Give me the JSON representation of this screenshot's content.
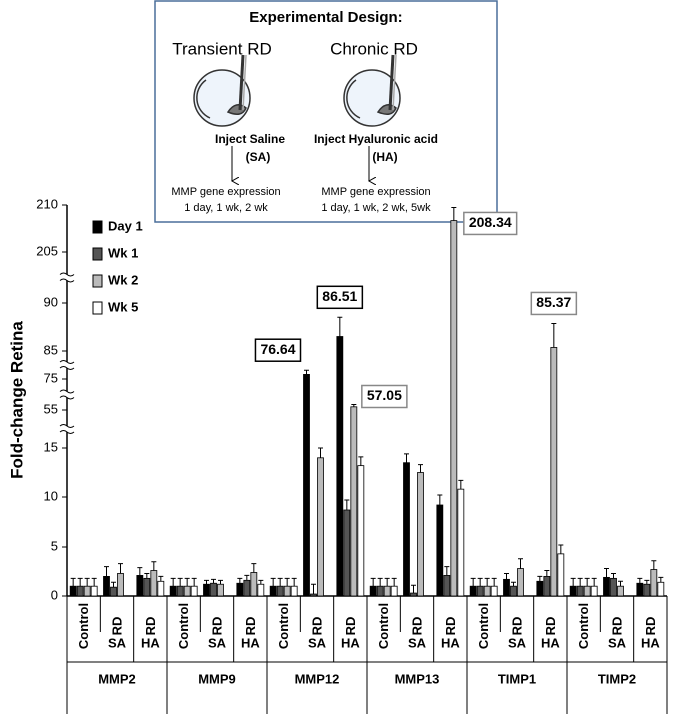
{
  "chart_data": {
    "type": "bar",
    "ylabel": "Fold-change Retina",
    "ylim": [
      0,
      210
    ],
    "yticks": [
      0,
      5,
      10,
      15,
      55,
      75,
      85,
      90,
      205,
      210
    ],
    "axis_breaks": [
      [
        15,
        55
      ],
      [
        55,
        75
      ],
      [
        75,
        85
      ],
      [
        90,
        205
      ]
    ],
    "genes": [
      "MMP2",
      "MMP9",
      "MMP12",
      "MMP13",
      "TIMP1",
      "TIMP2"
    ],
    "categories": [
      "Control",
      "RD",
      "RD",
      "Control",
      "RD",
      "RD",
      "Control",
      "RD",
      "RD",
      "Control",
      "RD",
      "RD",
      "Control",
      "RD",
      "RD",
      "Control",
      "RD",
      "RD"
    ],
    "subcategories": [
      null,
      "SA",
      "HA",
      null,
      "SA",
      "HA",
      null,
      "SA",
      "HA",
      null,
      "SA",
      "HA",
      null,
      "SA",
      "HA",
      null,
      "SA",
      "HA"
    ],
    "series": [
      {
        "name": "Day 1",
        "color": "#000000",
        "values": [
          1,
          2.0,
          2.1,
          1,
          1.2,
          1.3,
          1,
          76.64,
          86.51,
          1,
          13.5,
          9.2,
          1,
          1.7,
          1.5,
          1,
          1.9,
          1.3
        ],
        "errors": [
          0.8,
          1.0,
          0.8,
          0.8,
          0.4,
          0.5,
          0.8,
          1.5,
          2.0,
          0.8,
          0.9,
          1.0,
          0.8,
          0.6,
          0.5,
          0.8,
          0.9,
          0.5
        ],
        "value_labels": [
          null,
          null,
          null,
          null,
          null,
          null,
          null,
          "76.64",
          "86.51",
          null,
          null,
          null,
          null,
          null,
          null,
          null,
          null,
          null
        ]
      },
      {
        "name": "Wk 1",
        "color": "#555555",
        "values": [
          1,
          0.9,
          1.8,
          1,
          1.3,
          1.6,
          1,
          0.2,
          8.7,
          1,
          0.3,
          2.1,
          1,
          1.0,
          2.0,
          1,
          1.8,
          1.2
        ],
        "errors": [
          0.8,
          0.5,
          0.5,
          0.8,
          0.4,
          0.5,
          0.8,
          1.0,
          1.0,
          0.8,
          0.8,
          0.9,
          0.8,
          0.4,
          0.6,
          0.8,
          0.5,
          0.4
        ],
        "value_labels": [
          null,
          null,
          null,
          null,
          null,
          null,
          null,
          null,
          null,
          null,
          null,
          null,
          null,
          null,
          null,
          null,
          null,
          null
        ]
      },
      {
        "name": "Wk 2",
        "color": "#bbbbbb",
        "values": [
          1,
          2.3,
          2.6,
          1,
          1.2,
          2.4,
          1,
          14.0,
          57.05,
          1,
          12.5,
          208.34,
          1,
          2.8,
          85.37,
          1,
          1.0,
          2.7
        ],
        "errors": [
          0.8,
          1.0,
          0.9,
          0.8,
          0.4,
          0.9,
          0.8,
          1.0,
          1.5,
          0.8,
          0.8,
          1.4,
          0.8,
          1.0,
          2.5,
          0.8,
          0.5,
          0.9
        ],
        "value_labels": [
          null,
          null,
          null,
          null,
          null,
          null,
          null,
          null,
          "57.05",
          null,
          null,
          "208.34",
          null,
          null,
          "85.37",
          null,
          null,
          null
        ]
      },
      {
        "name": "Wk 5",
        "color": "#ffffff",
        "values": [
          1,
          null,
          1.5,
          1,
          null,
          1.2,
          1,
          null,
          13.2,
          1,
          null,
          10.8,
          1,
          null,
          4.3,
          1,
          null,
          1.4
        ],
        "errors": [
          0.8,
          null,
          0.5,
          0.8,
          null,
          0.4,
          0.8,
          null,
          0.9,
          0.8,
          null,
          0.9,
          0.8,
          null,
          0.9,
          0.8,
          null,
          0.5
        ],
        "value_labels": [
          null,
          null,
          null,
          null,
          null,
          null,
          null,
          null,
          null,
          null,
          null,
          null,
          null,
          null,
          null,
          null,
          null,
          null
        ]
      }
    ]
  },
  "inset": {
    "title": "Experimental Design:",
    "left": {
      "title": "Transient RD",
      "step": "Inject Saline",
      "abbrev": "(SA)",
      "result": "MMP gene expression",
      "timeline": "1 day, 1 wk, 2 wk"
    },
    "right": {
      "title": "Chronic RD",
      "step": "Inject Hyaluronic acid",
      "abbrev": "(HA)",
      "result": "MMP gene expression",
      "timeline": "1 day, 1 wk, 2 wk, 5wk"
    }
  }
}
